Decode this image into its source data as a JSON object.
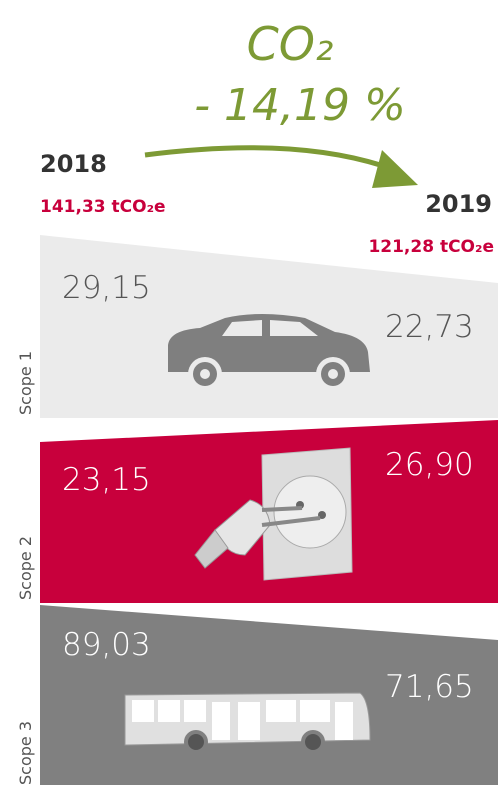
{
  "header": {
    "gas": "CO₂",
    "change": "- 14,19 %"
  },
  "years": [
    {
      "year": "2018",
      "total": "141,33 tCO₂e"
    },
    {
      "year": "2019",
      "total": "121,28 tCO₂e"
    }
  ],
  "scopes": [
    {
      "name": "Scope 1",
      "from": "29,15",
      "to": "22,73"
    },
    {
      "name": "Scope 2",
      "from": "23,15",
      "to": "26,90"
    },
    {
      "name": "Scope 3",
      "from": "89,03",
      "to": "71,65"
    }
  ]
}
